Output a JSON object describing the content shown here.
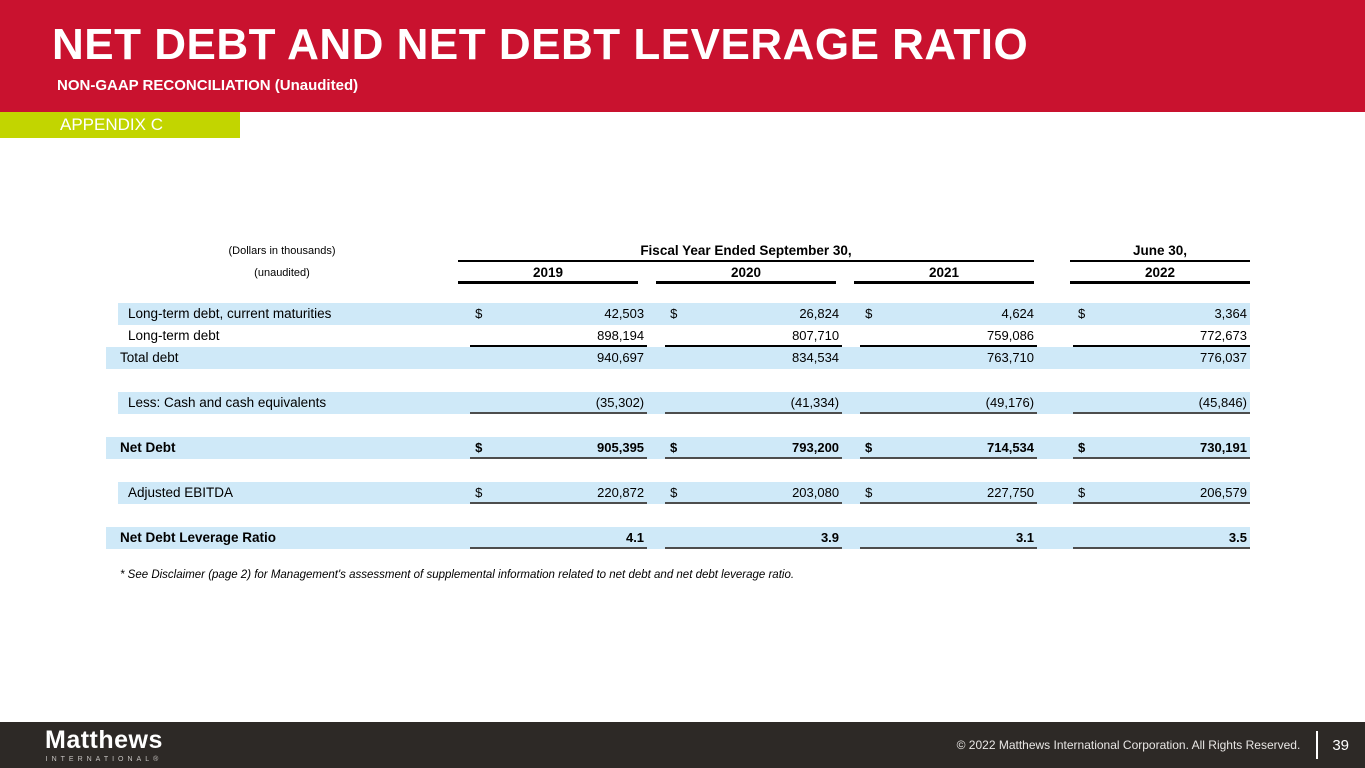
{
  "slide": {
    "title": "NET DEBT AND NET DEBT LEVERAGE RATIO",
    "subtitle": "NON-GAAP RECONCILIATION (Unaudited)",
    "appendix_label": "APPENDIX C",
    "footnote": "* See Disclaimer (page 2) for Management's assessment of supplemental information related to net debt and net debt leverage ratio."
  },
  "colors": {
    "banner_red": "#C9122F",
    "appendix_green": "#C2D500",
    "row_blue": "#CFE9F8",
    "footer_dark": "#2D2926",
    "value_underline": "#4D4D4D"
  },
  "table": {
    "unit_note": "(Dollars in thousands)",
    "audit_note": "(unaudited)",
    "fiscal_group_header": "Fiscal Year Ended September 30,",
    "june_group_header": "June 30,",
    "years": [
      "2019",
      "2020",
      "2021",
      "2022"
    ],
    "rows": [
      {
        "label": "Long-term debt, current maturities",
        "indent": true,
        "bold": false,
        "blue": true,
        "dollar": true,
        "underline": false,
        "values": [
          "42,503",
          "26,824",
          "4,624",
          "3,364"
        ]
      },
      {
        "label": "Long-term debt",
        "indent": true,
        "bold": false,
        "blue": false,
        "dollar": false,
        "underline": true,
        "underline_color": "#000000",
        "values": [
          "898,194",
          "807,710",
          "759,086",
          "772,673"
        ]
      },
      {
        "label": "Total debt",
        "indent": false,
        "bold": false,
        "blue": true,
        "dollar": false,
        "underline": false,
        "values": [
          "940,697",
          "834,534",
          "763,710",
          "776,037"
        ]
      },
      {
        "spacer": true
      },
      {
        "label": "Less: Cash and cash equivalents",
        "indent": true,
        "bold": false,
        "blue": true,
        "dollar": false,
        "underline": true,
        "values": [
          "(35,302)",
          "(41,334)",
          "(49,176)",
          "(45,846)"
        ]
      },
      {
        "spacer": true
      },
      {
        "label": "Net Debt",
        "indent": false,
        "bold": true,
        "blue": true,
        "dollar": true,
        "underline": true,
        "values": [
          "905,395",
          "793,200",
          "714,534",
          "730,191"
        ]
      },
      {
        "spacer": true
      },
      {
        "label": "Adjusted EBITDA",
        "indent": true,
        "bold": false,
        "blue": true,
        "dollar": true,
        "underline": true,
        "values": [
          "220,872",
          "203,080",
          "227,750",
          "206,579"
        ]
      },
      {
        "spacer": true
      },
      {
        "label": "Net Debt Leverage Ratio",
        "indent": false,
        "bold": true,
        "blue": true,
        "dollar": false,
        "underline": true,
        "values": [
          "4.1",
          "3.9",
          "3.1",
          "3.5"
        ]
      }
    ]
  },
  "footer": {
    "logo_primary": "Matthews",
    "logo_secondary": "INTERNATIONAL®",
    "copyright": "© 2022 Matthews International Corporation. All Rights Reserved.",
    "page_number": "39"
  }
}
